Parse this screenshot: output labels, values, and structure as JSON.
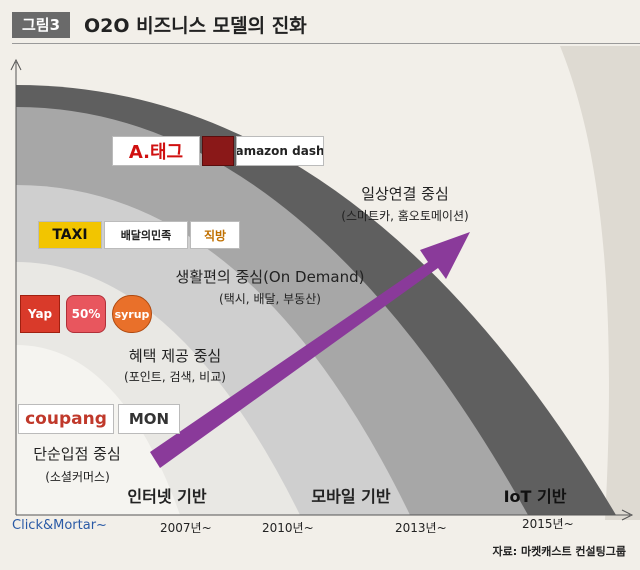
{
  "header": {
    "badge": "그림3",
    "title": "O2O 비즈니스 모델의 진화"
  },
  "stages": [
    {
      "title": "단순입점 중심",
      "subtitle": "(소셜커머스)"
    },
    {
      "title": "혜택 제공 중심",
      "subtitle": "(포인트, 검색, 비교)"
    },
    {
      "title": "생활편의 중심(On Demand)",
      "subtitle": "(택시, 배달, 부동산)"
    },
    {
      "title": "일상연결 중심",
      "subtitle": "(스마트카, 홈오토메이션)"
    }
  ],
  "tiers": [
    "인터넷 기반",
    "모바일 기반",
    "IoT 기반"
  ],
  "axis": [
    "Click&Mortar~",
    "2007년~",
    "2010년~",
    "2013년~",
    "2015년~"
  ],
  "logos": {
    "coupang": "coupang",
    "tmon": "MON",
    "yap": "Yap",
    "fifty": "50%",
    "syrup": "syrup",
    "taxi": "TAXI",
    "baemin": "배달의민족",
    "zigbang": "직방",
    "atag": "A.태그",
    "amazon": "amazon dash"
  },
  "source": "자료: 마켓캐스트 컨설팅그룹",
  "colors": {
    "arrow": "#8a3a9a",
    "band1": "#f5f4f0",
    "band2": "#e9e8e4",
    "band3": "#cfcfcf",
    "band4": "#a7a7a7",
    "band5": "#5f5f5f"
  }
}
